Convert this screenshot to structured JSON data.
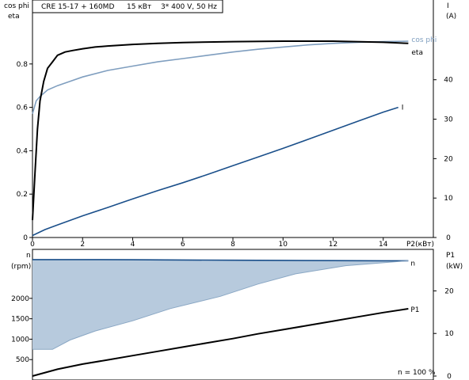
{
  "header": {
    "model": "CRE 15-17 + 160MD",
    "power": "15 кВт",
    "supply": "3* 400 V, 50 Hz"
  },
  "chart_data": [
    {
      "type": "line",
      "axes": {
        "x": {
          "label": "P2(кВт)",
          "range": [
            0,
            16
          ],
          "ticks": [
            "0",
            "2",
            "4",
            "6",
            "8",
            "10",
            "12",
            "14"
          ]
        },
        "y_left": {
          "label_top": "cos phi",
          "label_bottom": "eta",
          "range": [
            0,
            1
          ],
          "ticks": [
            "0",
            "0.2",
            "0.4",
            "0.6",
            "0.8"
          ]
        },
        "y_right": {
          "label_top": "I",
          "label_bottom": "(A)",
          "range": [
            0,
            55
          ],
          "ticks": [
            "0",
            "10",
            "20",
            "30",
            "40"
          ]
        }
      },
      "grid": false,
      "series": [
        {
          "name": "cos phi",
          "axis": "left",
          "color": "#7f9ebf",
          "x": [
            0,
            0.15,
            0.3,
            0.6,
            1,
            1.5,
            2,
            3,
            4,
            5,
            6,
            7,
            8,
            9,
            10,
            11,
            12,
            13,
            14,
            15
          ],
          "y": [
            0.57,
            0.63,
            0.65,
            0.68,
            0.7,
            0.72,
            0.74,
            0.77,
            0.79,
            0.81,
            0.825,
            0.84,
            0.855,
            0.868,
            0.878,
            0.888,
            0.895,
            0.9,
            0.903,
            0.905
          ]
        },
        {
          "name": "eta",
          "axis": "left",
          "color": "#000000",
          "x": [
            0,
            0.1,
            0.2,
            0.3,
            0.45,
            0.6,
            0.8,
            1,
            1.3,
            1.6,
            2,
            2.5,
            3,
            4,
            5,
            6,
            7,
            8,
            10,
            12,
            14,
            15
          ],
          "y": [
            0.08,
            0.3,
            0.5,
            0.63,
            0.72,
            0.78,
            0.81,
            0.84,
            0.855,
            0.862,
            0.87,
            0.878,
            0.883,
            0.89,
            0.895,
            0.899,
            0.901,
            0.903,
            0.905,
            0.905,
            0.9,
            0.895
          ]
        },
        {
          "name": "I",
          "axis": "right",
          "color": "#1a4f8a",
          "x": [
            0,
            0.5,
            1,
            2,
            3,
            4,
            5,
            6,
            7,
            8,
            9,
            10,
            11,
            12,
            13,
            14,
            14.6
          ],
          "y": [
            0.5,
            2,
            3.2,
            5.5,
            7.6,
            9.8,
            11.9,
            13.9,
            16,
            18.2,
            20.4,
            22.6,
            24.9,
            27.2,
            29.5,
            31.8,
            33
          ]
        }
      ]
    },
    {
      "type": "area",
      "axes": {
        "x": {
          "range": [
            0,
            16
          ]
        },
        "y_left": {
          "label_top": "n",
          "label_bottom": "(rpm)",
          "range": [
            0,
            3200
          ],
          "ticks": [
            "500",
            "1000",
            "1500",
            "2000"
          ]
        },
        "y_right": {
          "label_top": "P1",
          "label_bottom": "(kW)",
          "range": [
            0,
            29
          ],
          "ticks": [
            "0",
            "10",
            "20"
          ]
        }
      },
      "grid": false,
      "annotation": "n = 100 %",
      "series": [
        {
          "name": "n",
          "axis": "left",
          "color": "#1a4f8a",
          "fill": "#b7cadd",
          "x_upper": [
            0,
            2,
            4,
            6,
            8,
            10,
            12,
            14,
            15
          ],
          "y_upper": [
            2950,
            2950,
            2945,
            2940,
            2935,
            2930,
            2925,
            2920,
            2920
          ],
          "x_lower": [
            0,
            0.8,
            1.5,
            2.5,
            4,
            5.5,
            7.5,
            9,
            10.5,
            12.5,
            15
          ],
          "y_lower": [
            750,
            750,
            980,
            1200,
            1450,
            1750,
            2050,
            2350,
            2600,
            2800,
            2920
          ]
        },
        {
          "name": "P1",
          "axis": "right",
          "color": "#000000",
          "x": [
            0,
            1,
            2,
            3,
            4,
            5,
            6,
            7,
            8,
            9,
            10,
            11,
            12,
            13,
            14,
            15
          ],
          "y": [
            0,
            1.6,
            2.8,
            3.8,
            4.8,
            5.8,
            6.8,
            7.8,
            8.8,
            9.9,
            10.9,
            11.9,
            12.9,
            13.9,
            14.9,
            15.8
          ]
        }
      ]
    }
  ]
}
